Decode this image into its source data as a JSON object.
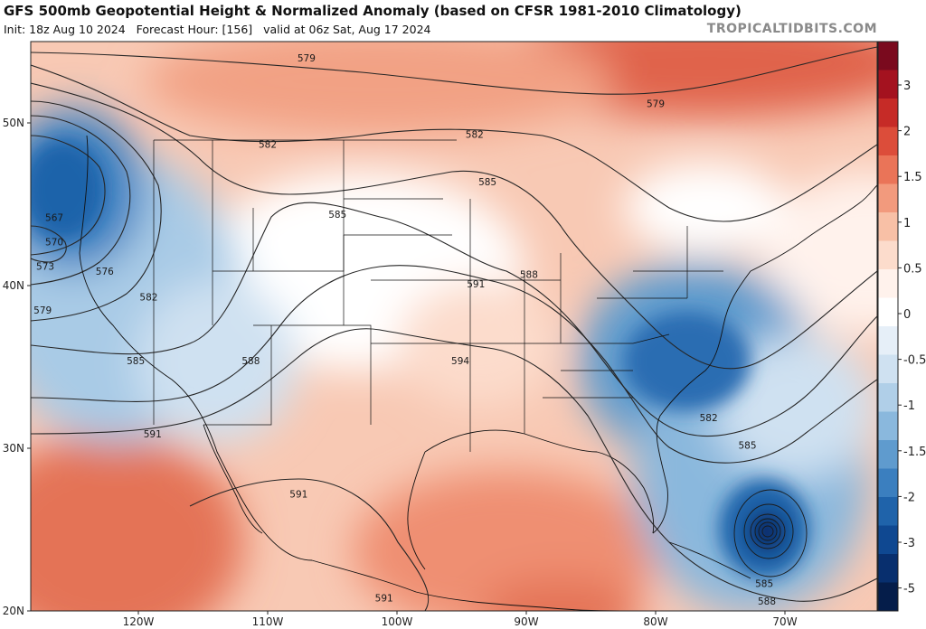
{
  "header": {
    "title": "GFS 500mb Geopotential Height & Normalized Anomaly (based on CFSR 1981-2010 Climatology)",
    "init": "Init: 18z Aug 10 2024",
    "forecast_hour": "Forecast Hour: [156]",
    "valid": "valid at 06z Sat, Aug 17 2024",
    "credit": "TROPICALTIDBITS.COM"
  },
  "axes": {
    "latitudes": [
      {
        "label": "50N",
        "lat": 50
      },
      {
        "label": "40N",
        "lat": 40
      },
      {
        "label": "30N",
        "lat": 30
      },
      {
        "label": "20N",
        "lat": 20
      }
    ],
    "longitudes": [
      {
        "label": "120W",
        "lon": -120
      },
      {
        "label": "110W",
        "lon": -110
      },
      {
        "label": "100W",
        "lon": -100
      },
      {
        "label": "90W",
        "lon": -90
      },
      {
        "label": "80W",
        "lon": -80
      },
      {
        "label": "70W",
        "lon": -70
      }
    ]
  },
  "colorbar": {
    "ticks": [
      "3",
      "2",
      "1.5",
      "1",
      "0.5",
      "0",
      "-0.5",
      "-1",
      "-1.5",
      "-2",
      "-3",
      "-5"
    ],
    "colors": [
      "#7a0a1e",
      "#a4121f",
      "#c62b27",
      "#dc4d3a",
      "#ea7458",
      "#f29a7d",
      "#f8c0a6",
      "#fcdccc",
      "#fff2ec",
      "#ffffff",
      "#e6eff8",
      "#cfe1f1",
      "#b0cfe8",
      "#8ab8dd",
      "#5f9bce",
      "#3b7fbf",
      "#1f63aa",
      "#0f4891",
      "#082f6e",
      "#051d4a"
    ]
  },
  "contours": [
    {
      "label": "579",
      "lon": -107,
      "lat": 54
    },
    {
      "label": "579",
      "lon": -80,
      "lat": 51.2
    },
    {
      "label": "582",
      "lon": -110,
      "lat": 48.7
    },
    {
      "label": "582",
      "lon": -94,
      "lat": 49.3
    },
    {
      "label": "585",
      "lon": -93,
      "lat": 46.4
    },
    {
      "label": "585",
      "lon": -104.6,
      "lat": 44.4
    },
    {
      "label": "567",
      "lon": -126.5,
      "lat": 44.2
    },
    {
      "label": "570",
      "lon": -126.5,
      "lat": 42.7
    },
    {
      "label": "573",
      "lon": -127.2,
      "lat": 41.2
    },
    {
      "label": "576",
      "lon": -122.6,
      "lat": 40.9
    },
    {
      "label": "579",
      "lon": -127.4,
      "lat": 38.5
    },
    {
      "label": "582",
      "lon": -119.2,
      "lat": 39.3
    },
    {
      "label": "588",
      "lon": -89.8,
      "lat": 40.7
    },
    {
      "label": "591",
      "lon": -93.9,
      "lat": 40.1
    },
    {
      "label": "585",
      "lon": -120.2,
      "lat": 35.4
    },
    {
      "label": "588",
      "lon": -111.3,
      "lat": 35.4
    },
    {
      "label": "594",
      "lon": -95.1,
      "lat": 35.4
    },
    {
      "label": "582",
      "lon": -75.9,
      "lat": 31.9
    },
    {
      "label": "585",
      "lon": -72.9,
      "lat": 30.2
    },
    {
      "label": "591",
      "lon": -118.9,
      "lat": 30.9
    },
    {
      "label": "591",
      "lon": -107.6,
      "lat": 27.2
    },
    {
      "label": "585",
      "lon": -71.6,
      "lat": 21.7
    },
    {
      "label": "588",
      "lon": -71.4,
      "lat": 20.6
    },
    {
      "label": "591",
      "lon": -101.0,
      "lat": 20.8
    }
  ]
}
